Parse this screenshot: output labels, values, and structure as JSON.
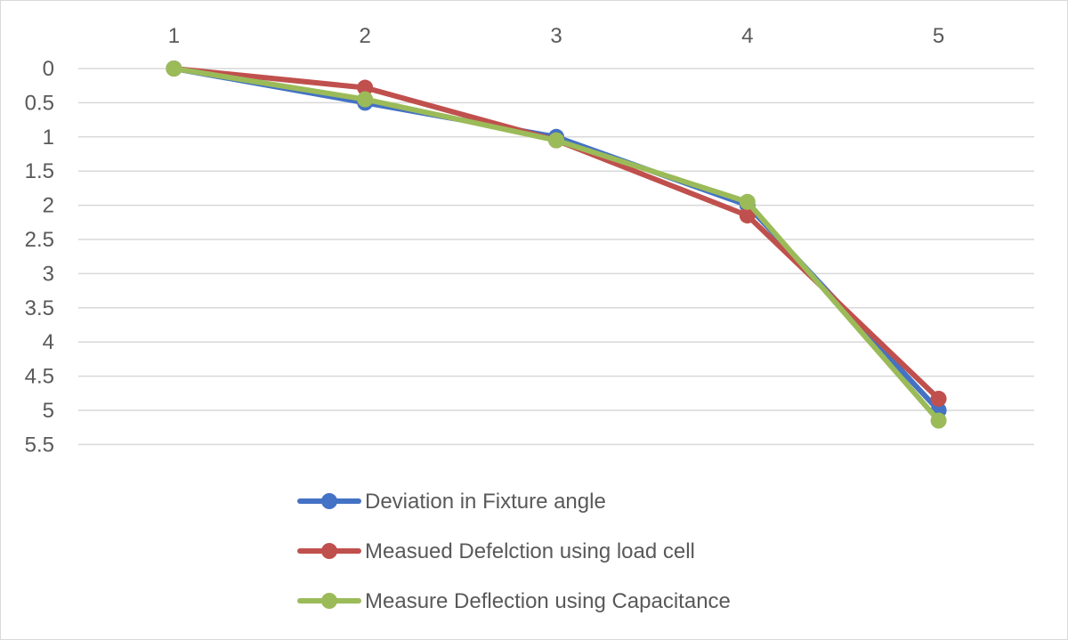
{
  "chart_data": {
    "type": "line",
    "title": "",
    "xlabel": "",
    "ylabel": "",
    "x_axis_position": "top",
    "y_axis_reversed": true,
    "categories": [
      "1",
      "2",
      "3",
      "4",
      "5"
    ],
    "ylim": [
      0,
      5.5
    ],
    "y_ticks": [
      "0",
      "0.5",
      "1",
      "1.5",
      "2",
      "2.5",
      "3",
      "3.5",
      "4",
      "4.5",
      "5",
      "5.5"
    ],
    "grid": true,
    "legend_position": "bottom",
    "series": [
      {
        "name": "Deviation in Fixture angle",
        "color": "#4472C4",
        "values": [
          0,
          0.5,
          1,
          2,
          5
        ]
      },
      {
        "name": "Measued Defelction using load cell",
        "color": "#C0504D",
        "values": [
          0,
          0.28,
          1.05,
          2.15,
          4.83
        ]
      },
      {
        "name": "Measure Deflection using Capacitance",
        "color": "#9BBB59",
        "values": [
          0,
          0.45,
          1.05,
          1.95,
          5.15
        ]
      }
    ]
  }
}
